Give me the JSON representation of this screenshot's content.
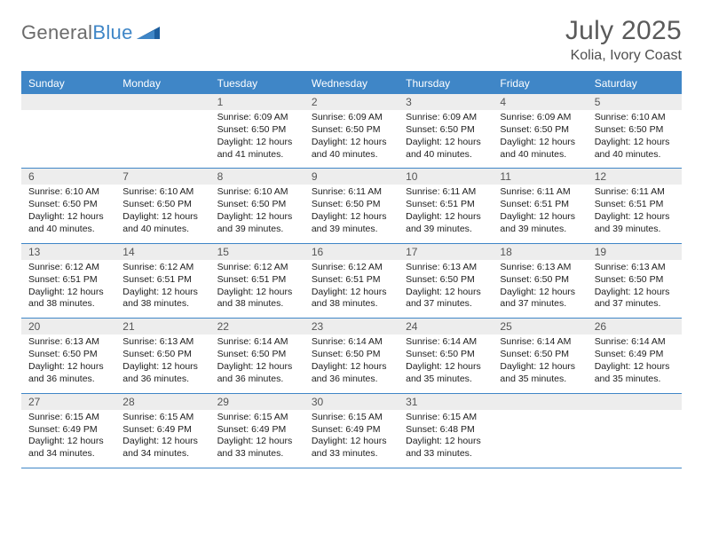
{
  "brand": {
    "name_part1": "General",
    "name_part2": "Blue"
  },
  "title": {
    "month_year": "July 2025",
    "location": "Kolia, Ivory Coast"
  },
  "colors": {
    "header_bg": "#3f86c7",
    "rule": "#3f86c7",
    "daynum_bg": "#ededed",
    "text": "#222222"
  },
  "weekdays": [
    "Sunday",
    "Monday",
    "Tuesday",
    "Wednesday",
    "Thursday",
    "Friday",
    "Saturday"
  ],
  "weeks": [
    [
      null,
      null,
      {
        "n": "1",
        "sunrise": "Sunrise: 6:09 AM",
        "sunset": "Sunset: 6:50 PM",
        "daylight": "Daylight: 12 hours and 41 minutes."
      },
      {
        "n": "2",
        "sunrise": "Sunrise: 6:09 AM",
        "sunset": "Sunset: 6:50 PM",
        "daylight": "Daylight: 12 hours and 40 minutes."
      },
      {
        "n": "3",
        "sunrise": "Sunrise: 6:09 AM",
        "sunset": "Sunset: 6:50 PM",
        "daylight": "Daylight: 12 hours and 40 minutes."
      },
      {
        "n": "4",
        "sunrise": "Sunrise: 6:09 AM",
        "sunset": "Sunset: 6:50 PM",
        "daylight": "Daylight: 12 hours and 40 minutes."
      },
      {
        "n": "5",
        "sunrise": "Sunrise: 6:10 AM",
        "sunset": "Sunset: 6:50 PM",
        "daylight": "Daylight: 12 hours and 40 minutes."
      }
    ],
    [
      {
        "n": "6",
        "sunrise": "Sunrise: 6:10 AM",
        "sunset": "Sunset: 6:50 PM",
        "daylight": "Daylight: 12 hours and 40 minutes."
      },
      {
        "n": "7",
        "sunrise": "Sunrise: 6:10 AM",
        "sunset": "Sunset: 6:50 PM",
        "daylight": "Daylight: 12 hours and 40 minutes."
      },
      {
        "n": "8",
        "sunrise": "Sunrise: 6:10 AM",
        "sunset": "Sunset: 6:50 PM",
        "daylight": "Daylight: 12 hours and 39 minutes."
      },
      {
        "n": "9",
        "sunrise": "Sunrise: 6:11 AM",
        "sunset": "Sunset: 6:50 PM",
        "daylight": "Daylight: 12 hours and 39 minutes."
      },
      {
        "n": "10",
        "sunrise": "Sunrise: 6:11 AM",
        "sunset": "Sunset: 6:51 PM",
        "daylight": "Daylight: 12 hours and 39 minutes."
      },
      {
        "n": "11",
        "sunrise": "Sunrise: 6:11 AM",
        "sunset": "Sunset: 6:51 PM",
        "daylight": "Daylight: 12 hours and 39 minutes."
      },
      {
        "n": "12",
        "sunrise": "Sunrise: 6:11 AM",
        "sunset": "Sunset: 6:51 PM",
        "daylight": "Daylight: 12 hours and 39 minutes."
      }
    ],
    [
      {
        "n": "13",
        "sunrise": "Sunrise: 6:12 AM",
        "sunset": "Sunset: 6:51 PM",
        "daylight": "Daylight: 12 hours and 38 minutes."
      },
      {
        "n": "14",
        "sunrise": "Sunrise: 6:12 AM",
        "sunset": "Sunset: 6:51 PM",
        "daylight": "Daylight: 12 hours and 38 minutes."
      },
      {
        "n": "15",
        "sunrise": "Sunrise: 6:12 AM",
        "sunset": "Sunset: 6:51 PM",
        "daylight": "Daylight: 12 hours and 38 minutes."
      },
      {
        "n": "16",
        "sunrise": "Sunrise: 6:12 AM",
        "sunset": "Sunset: 6:51 PM",
        "daylight": "Daylight: 12 hours and 38 minutes."
      },
      {
        "n": "17",
        "sunrise": "Sunrise: 6:13 AM",
        "sunset": "Sunset: 6:50 PM",
        "daylight": "Daylight: 12 hours and 37 minutes."
      },
      {
        "n": "18",
        "sunrise": "Sunrise: 6:13 AM",
        "sunset": "Sunset: 6:50 PM",
        "daylight": "Daylight: 12 hours and 37 minutes."
      },
      {
        "n": "19",
        "sunrise": "Sunrise: 6:13 AM",
        "sunset": "Sunset: 6:50 PM",
        "daylight": "Daylight: 12 hours and 37 minutes."
      }
    ],
    [
      {
        "n": "20",
        "sunrise": "Sunrise: 6:13 AM",
        "sunset": "Sunset: 6:50 PM",
        "daylight": "Daylight: 12 hours and 36 minutes."
      },
      {
        "n": "21",
        "sunrise": "Sunrise: 6:13 AM",
        "sunset": "Sunset: 6:50 PM",
        "daylight": "Daylight: 12 hours and 36 minutes."
      },
      {
        "n": "22",
        "sunrise": "Sunrise: 6:14 AM",
        "sunset": "Sunset: 6:50 PM",
        "daylight": "Daylight: 12 hours and 36 minutes."
      },
      {
        "n": "23",
        "sunrise": "Sunrise: 6:14 AM",
        "sunset": "Sunset: 6:50 PM",
        "daylight": "Daylight: 12 hours and 36 minutes."
      },
      {
        "n": "24",
        "sunrise": "Sunrise: 6:14 AM",
        "sunset": "Sunset: 6:50 PM",
        "daylight": "Daylight: 12 hours and 35 minutes."
      },
      {
        "n": "25",
        "sunrise": "Sunrise: 6:14 AM",
        "sunset": "Sunset: 6:50 PM",
        "daylight": "Daylight: 12 hours and 35 minutes."
      },
      {
        "n": "26",
        "sunrise": "Sunrise: 6:14 AM",
        "sunset": "Sunset: 6:49 PM",
        "daylight": "Daylight: 12 hours and 35 minutes."
      }
    ],
    [
      {
        "n": "27",
        "sunrise": "Sunrise: 6:15 AM",
        "sunset": "Sunset: 6:49 PM",
        "daylight": "Daylight: 12 hours and 34 minutes."
      },
      {
        "n": "28",
        "sunrise": "Sunrise: 6:15 AM",
        "sunset": "Sunset: 6:49 PM",
        "daylight": "Daylight: 12 hours and 34 minutes."
      },
      {
        "n": "29",
        "sunrise": "Sunrise: 6:15 AM",
        "sunset": "Sunset: 6:49 PM",
        "daylight": "Daylight: 12 hours and 33 minutes."
      },
      {
        "n": "30",
        "sunrise": "Sunrise: 6:15 AM",
        "sunset": "Sunset: 6:49 PM",
        "daylight": "Daylight: 12 hours and 33 minutes."
      },
      {
        "n": "31",
        "sunrise": "Sunrise: 6:15 AM",
        "sunset": "Sunset: 6:48 PM",
        "daylight": "Daylight: 12 hours and 33 minutes."
      },
      null,
      null
    ]
  ]
}
